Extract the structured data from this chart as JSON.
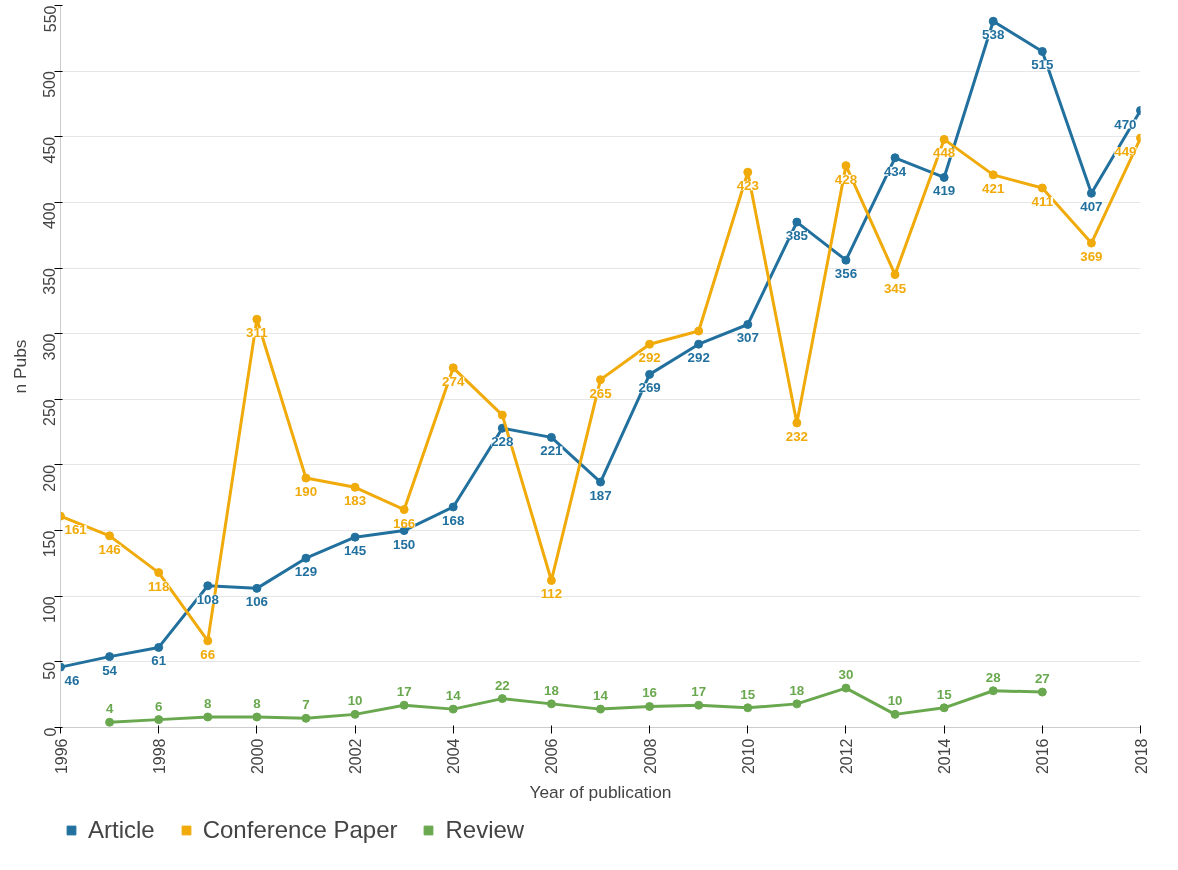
{
  "chart_data": {
    "type": "line",
    "xlabel": "Year of publication",
    "ylabel": "n Pubs",
    "xlim": [
      1996,
      2018
    ],
    "xticks": [
      1996,
      1998,
      2000,
      2002,
      2004,
      2006,
      2008,
      2010,
      2012,
      2014,
      2016,
      2018
    ],
    "ylim": [
      0,
      550
    ],
    "yticks": [
      0,
      50,
      100,
      150,
      200,
      250,
      300,
      350,
      400,
      450,
      500,
      550
    ],
    "grid": "y",
    "legend": "bottom left",
    "marker": "circle",
    "line_style": "solid",
    "series": [
      {
        "name": "Article",
        "color": "#21709e",
        "x": [
          1996,
          1997,
          1998,
          1999,
          2000,
          2001,
          2002,
          2003,
          2004,
          2005,
          2006,
          2007,
          2008,
          2009,
          2010,
          2011,
          2012,
          2013,
          2014,
          2015,
          2016,
          2017,
          2018
        ],
        "values": [
          46,
          54,
          61,
          108,
          106,
          129,
          145,
          150,
          168,
          228,
          221,
          187,
          269,
          292,
          307,
          385,
          356,
          434,
          419,
          538,
          515,
          407,
          470
        ],
        "value_labels": [
          "46",
          "54",
          "61",
          "108",
          "106",
          "129",
          "145",
          "150",
          "168",
          "228",
          "221",
          "187",
          "269",
          "292",
          "307",
          "385",
          "356",
          "434",
          "419",
          "538",
          "515",
          "407",
          "470"
        ]
      },
      {
        "name": "Conference Paper",
        "color": "#f0aa0a",
        "x": [
          1996,
          1997,
          1998,
          1999,
          2000,
          2001,
          2002,
          2003,
          2004,
          2005,
          2006,
          2007,
          2008,
          2009,
          2010,
          2011,
          2012,
          2013,
          2014,
          2015,
          2016,
          2017,
          2018
        ],
        "values": [
          161,
          146,
          118,
          66,
          311,
          190,
          183,
          166,
          274,
          238,
          112,
          265,
          292,
          302,
          423,
          232,
          428,
          345,
          448,
          421,
          411,
          369,
          449
        ],
        "value_labels": [
          "161",
          "146",
          "118",
          "66",
          "311",
          "190",
          "183",
          "166",
          "274",
          null,
          "112",
          "265",
          "292",
          null,
          "423",
          "232",
          "428",
          "345",
          "448",
          "421",
          "411",
          "369",
          "449"
        ]
      },
      {
        "name": "Review",
        "color": "#6aa84f",
        "x": [
          1997,
          1998,
          1999,
          2000,
          2001,
          2002,
          2003,
          2004,
          2005,
          2006,
          2007,
          2008,
          2009,
          2010,
          2011,
          2012,
          2013,
          2014,
          2015,
          2016
        ],
        "values": [
          4,
          6,
          8,
          8,
          7,
          10,
          17,
          14,
          22,
          18,
          14,
          16,
          17,
          15,
          18,
          30,
          10,
          15,
          28,
          27
        ],
        "value_labels": [
          "4",
          "6",
          "8",
          "8",
          "7",
          "10",
          "17",
          "14",
          "22",
          "18",
          "14",
          "16",
          "17",
          "15",
          "18",
          "30",
          "10",
          "15",
          "28",
          "27"
        ]
      }
    ]
  }
}
